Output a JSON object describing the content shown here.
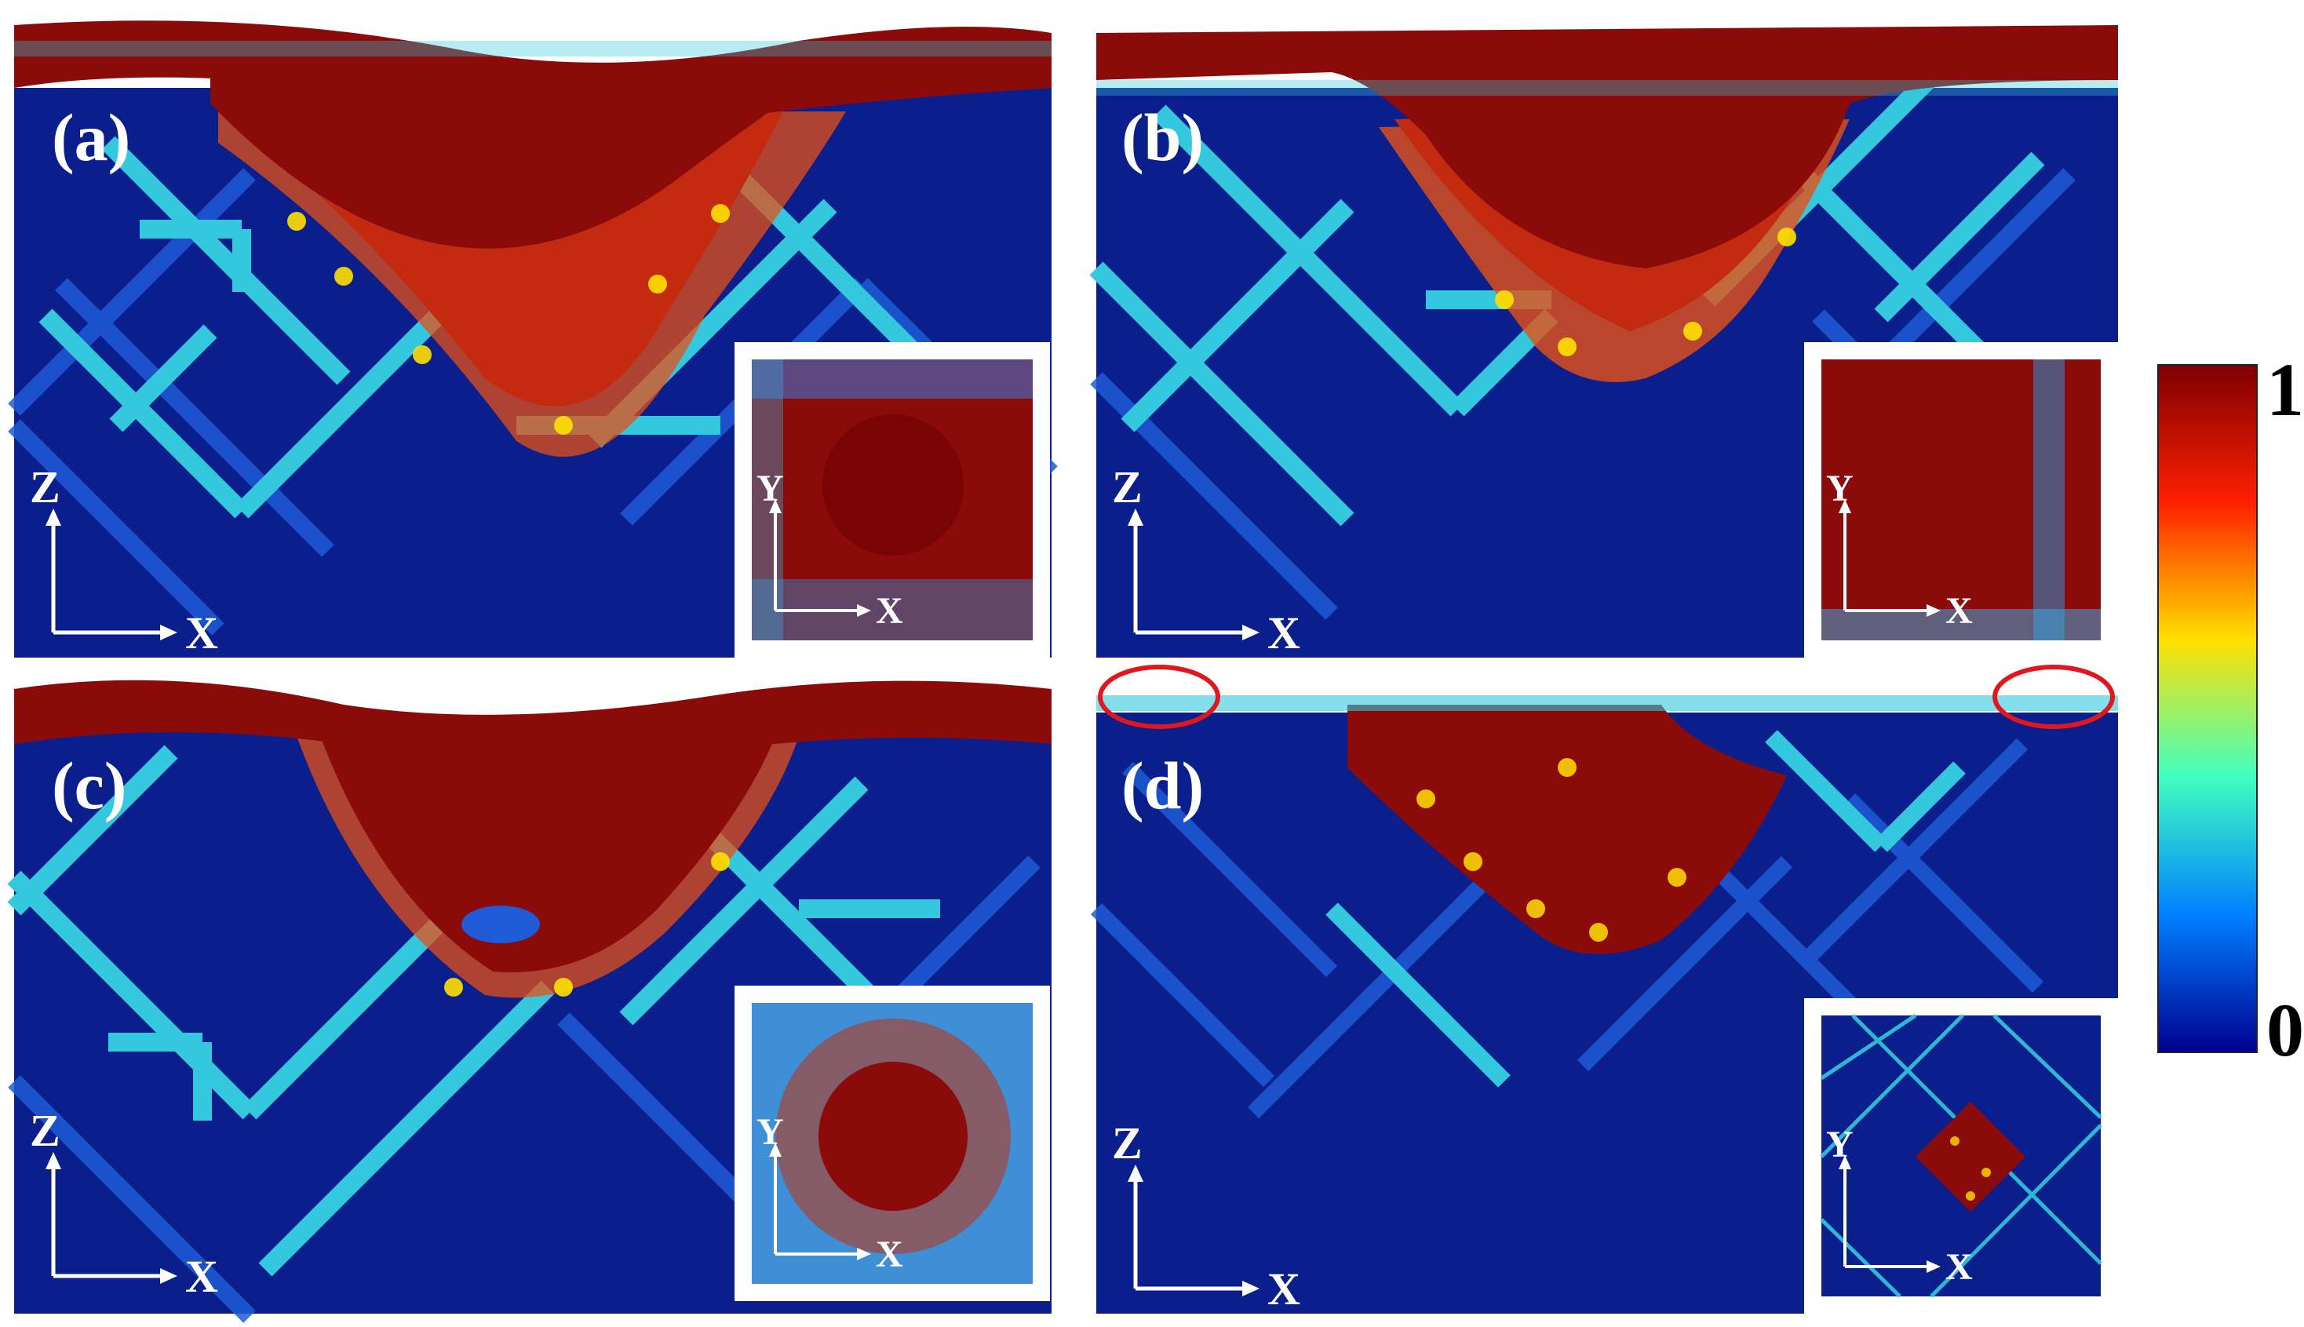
{
  "figure": {
    "panels": [
      {
        "id": "a",
        "label": "(a)",
        "axis_horizontal": "X",
        "axis_vertical": "Z",
        "inset_horizontal": "X",
        "inset_vertical": "Y"
      },
      {
        "id": "b",
        "label": "(b)",
        "axis_horizontal": "X",
        "axis_vertical": "Z",
        "inset_horizontal": "X",
        "inset_vertical": "Y"
      },
      {
        "id": "c",
        "label": "(c)",
        "axis_horizontal": "X",
        "axis_vertical": "Z",
        "inset_horizontal": "X",
        "inset_vertical": "Y"
      },
      {
        "id": "d",
        "label": "(d)",
        "axis_horizontal": "X",
        "axis_vertical": "Z",
        "inset_horizontal": "X",
        "inset_vertical": "Y"
      }
    ],
    "colorbar": {
      "max_label": "1",
      "min_label": "0",
      "colormap": [
        "#7f0000",
        "#ff2000",
        "#ffe000",
        "#40ffc0",
        "#0080ff",
        "#000090"
      ]
    },
    "colors": {
      "background_substrate": "#0a1f8c",
      "deformed_region": "#8b0a0a",
      "dislocation_cyan": "#33c8dd",
      "dislocation_blue": "#1f5bd6",
      "highlight_ring": "#e0181e"
    }
  }
}
